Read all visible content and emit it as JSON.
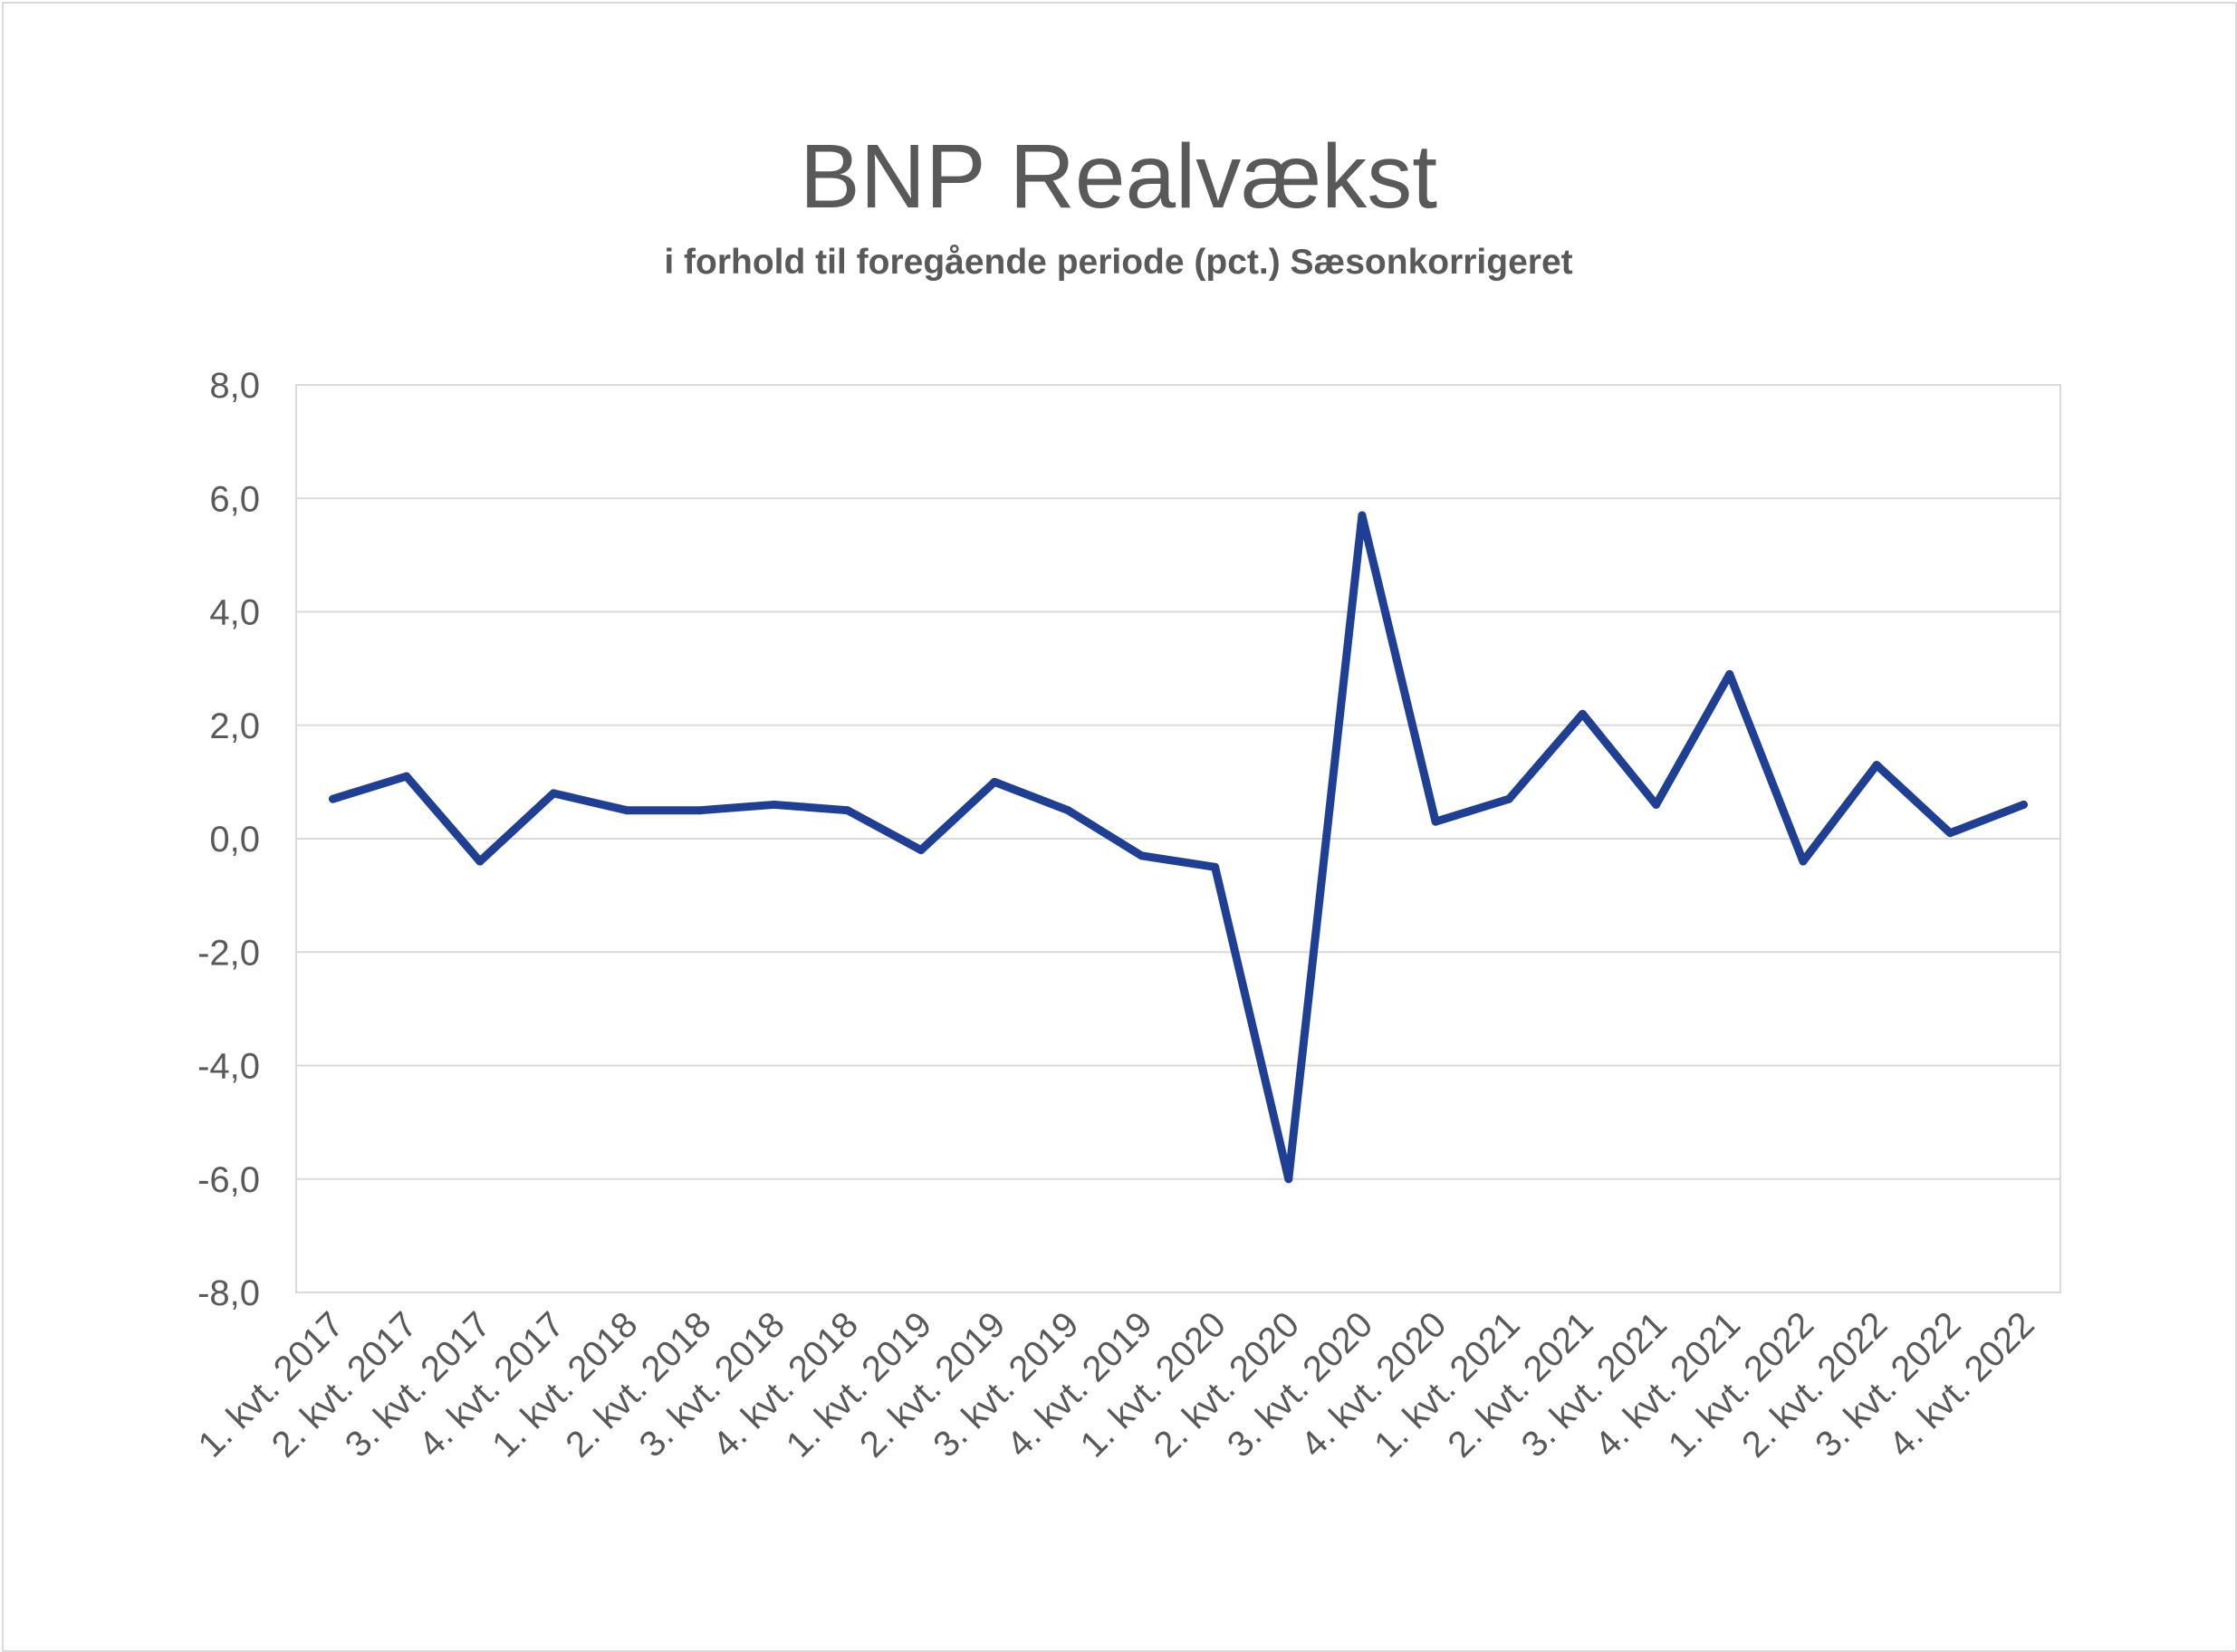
{
  "chart_data": {
    "type": "line",
    "title": "BNP Realvækst",
    "subtitle": "i forhold til foregående periode (pct.) Sæsonkorrigeret",
    "xlabel": "",
    "ylabel": "",
    "categories": [
      "1. kvt. 2017",
      "2. kvt. 2017",
      "3. kvt. 2017",
      "4. kvt. 2017",
      "1. kvt. 2018",
      "2. kvt. 2018",
      "3. kvt. 2018",
      "4. kvt. 2018",
      "1. kvt. 2019",
      "2. kvt. 2019",
      "3. kvt. 2019",
      "4. kvt. 2019",
      "1. kvt. 2020",
      "2. kvt. 2020",
      "3. kvt. 2020",
      "4. kvt. 2020",
      "1. kvt. 2021",
      "2. kvt. 2021",
      "3. kvt. 2021",
      "4. kvt. 2021",
      "1. kvt. 2022",
      "2. kvt. 2022",
      "3. kvt. 2022",
      "4. kvt. 2022"
    ],
    "series": [
      {
        "color": "#1f3f94",
        "values": [
          0.7,
          1.1,
          -0.4,
          0.8,
          0.5,
          0.5,
          0.6,
          0.5,
          -0.2,
          1.0,
          0.5,
          -0.3,
          -0.5,
          -6.0,
          5.7,
          0.3,
          0.7,
          2.2,
          0.6,
          2.9,
          -0.4,
          1.3,
          0.1,
          0.6
        ]
      }
    ],
    "ylim": [
      -8,
      8
    ],
    "yticks": [
      8,
      6,
      4,
      2,
      0,
      -2,
      -4,
      -6,
      -8
    ],
    "ytick_labels": [
      "8,0",
      "6,0",
      "4,0",
      "2,0",
      "0,0",
      "-2,0",
      "-4,0",
      "-6,0",
      "-8,0"
    ],
    "grid": true,
    "legend": "none"
  }
}
